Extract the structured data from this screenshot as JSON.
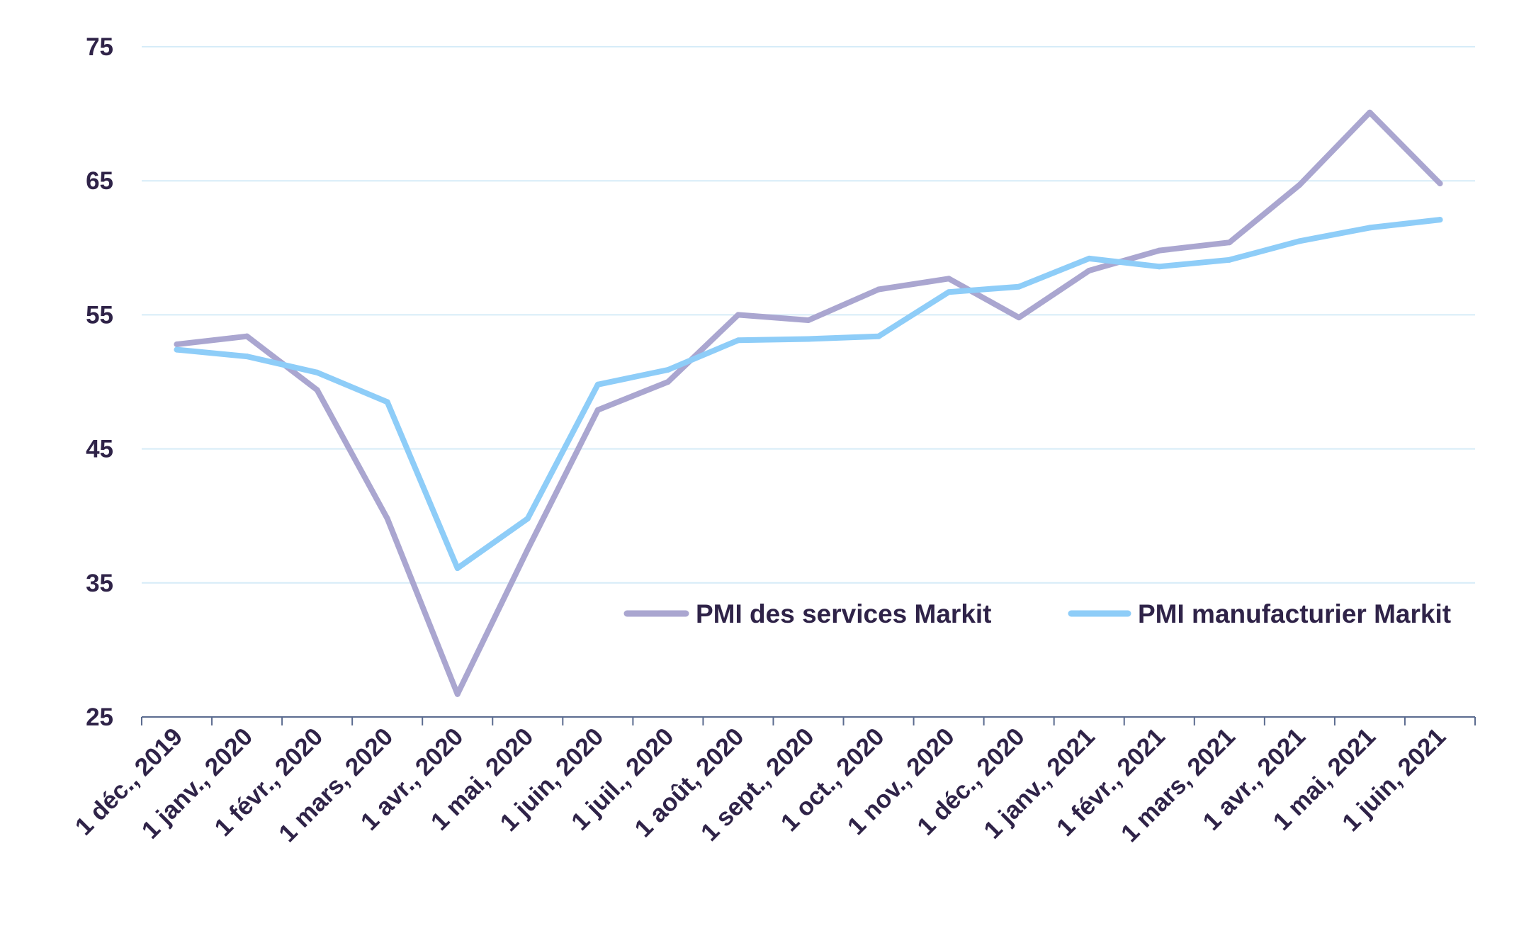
{
  "chart_data": {
    "type": "line",
    "title": "",
    "xlabel": "",
    "ylabel": "",
    "categories": [
      "1 déc., 2019",
      "1 janv., 2020",
      "1 févr., 2020",
      "1 mars, 2020",
      "1 avr., 2020",
      "1 mai, 2020",
      "1 juin, 2020",
      "1 juil., 2020",
      "1 août, 2020",
      "1 sept., 2020",
      "1 oct., 2020",
      "1 nov., 2020",
      "1 déc., 2020",
      "1 janv., 2021",
      "1 févr., 2021",
      "1 mars, 2021",
      "1 avr., 2021",
      "1 mai, 2021",
      "1 juin, 2021"
    ],
    "y_ticks": [
      "25",
      "35",
      "45",
      "55",
      "65",
      "75"
    ],
    "ylim": [
      25,
      75
    ],
    "grid": true,
    "legend_position": "inside-bottom-right",
    "series": [
      {
        "name": "PMI des services Markit",
        "color": "#aaa6d0",
        "values": [
          52.8,
          53.4,
          49.4,
          39.8,
          26.7,
          37.5,
          47.9,
          50.0,
          55.0,
          54.6,
          56.9,
          57.7,
          54.8,
          58.3,
          59.8,
          60.4,
          64.7,
          70.1,
          64.8
        ]
      },
      {
        "name": "PMI manufacturier Markit",
        "color": "#8ecdf8",
        "values": [
          52.4,
          51.9,
          50.7,
          48.5,
          36.1,
          39.8,
          49.8,
          50.9,
          53.1,
          53.2,
          53.4,
          56.7,
          57.1,
          59.2,
          58.6,
          59.1,
          60.5,
          61.5,
          62.1
        ]
      }
    ]
  }
}
